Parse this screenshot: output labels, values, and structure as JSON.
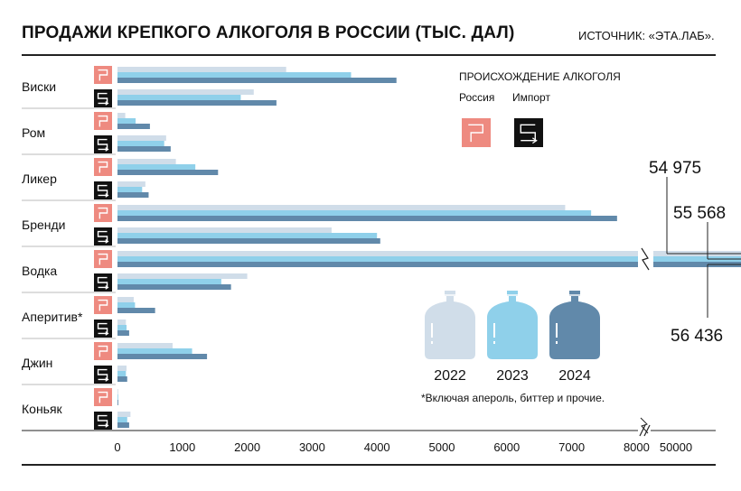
{
  "header": {
    "title": "ПРОДАЖИ КРЕПКОГО АЛКОГОЛЯ В РОССИИ (ТЫС. ДАЛ)",
    "source": "ИСТОЧНИК: «ЭТА.ЛАБ»."
  },
  "legend": {
    "title": "ПРОИСХОЖДЕНИЕ АЛКОГОЛЯ",
    "russia": "Россия",
    "import": "Импорт",
    "russia_icon": "russia-origin-icon",
    "import_icon": "import-origin-icon"
  },
  "footnote": "*Включая апероль, биттер и прочие.",
  "colors": {
    "2022": "#d0dde9",
    "2023": "#8fd0ea",
    "2024": "#6189aa",
    "russia": "#ee8a80",
    "import": "#111111"
  },
  "chart_data": {
    "type": "bar",
    "orientation": "horizontal",
    "title": "ПРОДАЖИ КРЕПКОГО АЛКОГОЛЯ В РОССИИ (ТЫС. ДАЛ)",
    "years": [
      "2022",
      "2023",
      "2024"
    ],
    "origins": [
      "Россия",
      "Импорт"
    ],
    "axis_break": true,
    "xlim": [
      0,
      8400
    ],
    "ticks": [
      0,
      1000,
      2000,
      3000,
      4000,
      5000,
      6000,
      7000,
      8000
    ],
    "tick_labels": [
      "0",
      "1000",
      "2000",
      "3000",
      "4000",
      "5000",
      "6000",
      "7000",
      "8000"
    ],
    "break_tick_label": "50000",
    "categories": [
      {
        "name": "Виски",
        "russia": [
          2600,
          3600,
          4300
        ],
        "import": [
          2100,
          1900,
          2450
        ]
      },
      {
        "name": "Ром",
        "russia": [
          120,
          280,
          500
        ],
        "import": [
          750,
          720,
          820
        ]
      },
      {
        "name": "Ликер",
        "russia": [
          900,
          1200,
          1550
        ],
        "import": [
          430,
          380,
          480
        ]
      },
      {
        "name": "Бренди",
        "russia": [
          6900,
          7300,
          7700
        ],
        "import": [
          3300,
          4000,
          4050
        ]
      },
      {
        "name": "Водка",
        "russia": [
          54975,
          55568,
          56436
        ],
        "import": [
          2000,
          1600,
          1750
        ]
      },
      {
        "name": "Аперитив*",
        "russia": [
          250,
          270,
          580
        ],
        "import": [
          130,
          140,
          180
        ]
      },
      {
        "name": "Джин",
        "russia": [
          850,
          1150,
          1380
        ],
        "import": [
          140,
          130,
          150
        ]
      },
      {
        "name": "Коньяк",
        "russia": [
          10,
          10,
          12
        ],
        "import": [
          200,
          150,
          180
        ]
      }
    ],
    "annotations": [
      "54 975",
      "55 568",
      "56 436"
    ]
  }
}
